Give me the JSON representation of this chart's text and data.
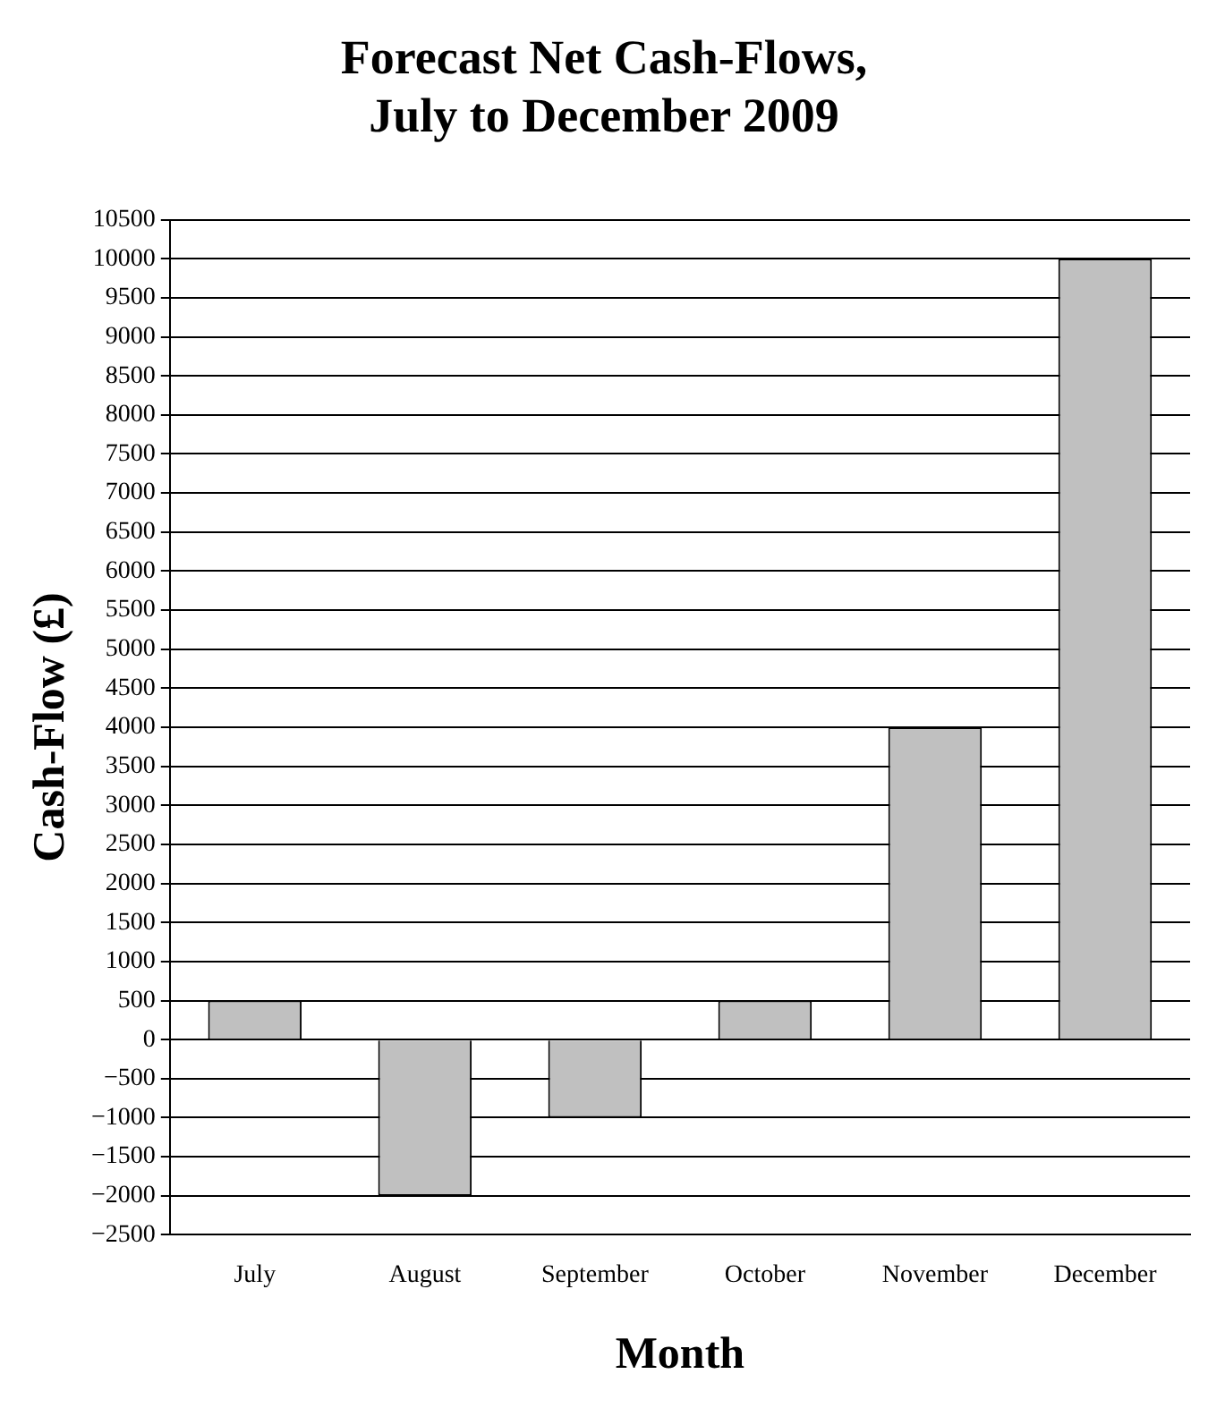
{
  "chart_data": {
    "type": "bar",
    "title": "Forecast Net Cash-Flows,\nJuly to December 2009",
    "xlabel": "Month",
    "ylabel": "Cash-Flow (£)",
    "categories": [
      "July",
      "August",
      "September",
      "October",
      "November",
      "December"
    ],
    "values": [
      500,
      -2000,
      -1000,
      500,
      4000,
      10000
    ],
    "color": "#c0c0c0",
    "ylim": [
      -2500,
      10500
    ],
    "yticks": [
      -2500,
      -2000,
      -1500,
      -1000,
      -500,
      0,
      500,
      1000,
      1500,
      2000,
      2500,
      3000,
      3500,
      4000,
      4500,
      5000,
      5500,
      6000,
      6500,
      7000,
      7500,
      8000,
      8500,
      9000,
      9500,
      10000,
      10500
    ],
    "grid": "y",
    "legend": false
  }
}
